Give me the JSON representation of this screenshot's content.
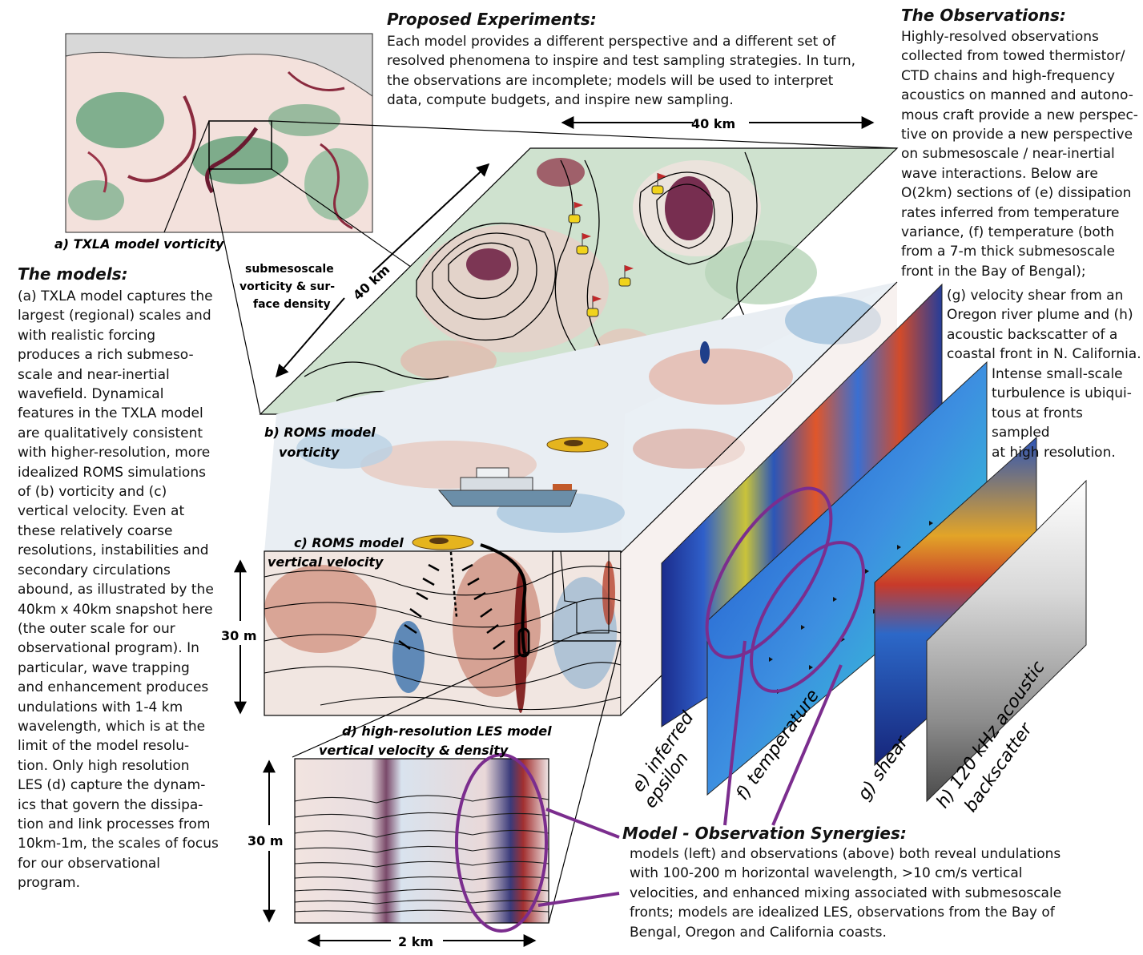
{
  "proposed": {
    "title": "Proposed Experiments:",
    "lines": [
      "Each model provides a different perspective and a different set of",
      "resolved phenomena to inspire and test sampling strategies. In turn,",
      "the observations are incomplete; models will be used to interpret",
      "data, compute budgets, and inspire new sampling."
    ]
  },
  "observations": {
    "title": "The Observations:",
    "lines": [
      "Highly-resolved observations",
      "collected from towed thermistor/",
      "CTD chains and high-frequency",
      "acoustics on manned and autono-",
      "mous craft provide a new perspec-",
      "tive on provide a new perspective",
      "on submesoscale / near-inertial",
      "wave interactions.  Below are",
      "O(2km) sections of (e) dissipation",
      "rates inferred from temperature",
      "variance, (f) temperature (both",
      "from a 7-m thick submesoscale",
      "front in the Bay of Bengal);"
    ],
    "lines2": [
      "(g) velocity shear from an",
      "Oregon river plume and (h)",
      "acoustic backscatter of a",
      "coastal front in N. California."
    ],
    "lines3": [
      "Intense small-scale",
      "turbulence is ubiqui-",
      "tous at fronts sampled",
      "at high resolution."
    ]
  },
  "models": {
    "title": "The models:",
    "lines": [
      "(a) TXLA model captures the",
      "largest (regional) scales and",
      "with realistic forcing",
      "produces a rich submeso-",
      "scale and near-inertial",
      "wavefield. Dynamical",
      "features in the TXLA model",
      "are qualitatively consistent",
      "with higher-resolution, more",
      "idealized ROMS simulations",
      "of (b) vorticity and (c)",
      "vertical velocity. Even at",
      "these relatively coarse",
      "resolutions, instabilities and",
      "secondary circulations",
      "abound, as illustrated by the",
      "40km x 40km snapshot here",
      "(the outer scale for our",
      "observational program). In",
      "particular, wave trapping",
      "and enhancement produces",
      "undulations with 1-4 km",
      "wavelength, which is at the",
      "limit of the model resolu-",
      "tion. Only high resolution",
      "LES (d) capture the dynam-",
      "ics that govern the dissipa-",
      "tion and link processes from",
      "10km-1m, the scales of focus",
      "for our observational",
      "program."
    ]
  },
  "synergies": {
    "title": "Model - Observation Synergies:",
    "lines": [
      "models (left) and observations (above) both reveal undulations",
      "with 100-200 m horizontal wavelength,  >10 cm/s vertical",
      "velocities, and enhanced mixing associated with submesoscale",
      "fronts; models are idealized LES, observations from the Bay of",
      "Bengal, Oregon and California coasts."
    ]
  },
  "captions": {
    "a": "a) TXLA model vorticity",
    "b1": "b) ROMS model",
    "b2": "vorticity",
    "c1": "c) ROMS model",
    "c2": "vertical velocity",
    "d1": "d) high-resolution LES model",
    "d2": "vertical velocity & density",
    "sub1": "submesoscale",
    "sub2": "vorticity & sur-",
    "sub3": "face density",
    "e1": "e) inferred",
    "e2": "epsilon",
    "f": "f) temperature",
    "g": "g) shear",
    "h1": "h) 120 kHz acoustic",
    "h2": "backscatter"
  },
  "scales": {
    "top": "40 km",
    "diag": "40 km",
    "depth1": "30 m",
    "depth2": "30 m",
    "bottom": "2 km"
  },
  "colors": {
    "vorticity_pos": "#8a2a3e",
    "vorticity_neg": "#3f8f5f",
    "velocity_pos": "#b8442e",
    "velocity_neg": "#2e6aa8",
    "synergy_purple": "#7b2d8e"
  }
}
